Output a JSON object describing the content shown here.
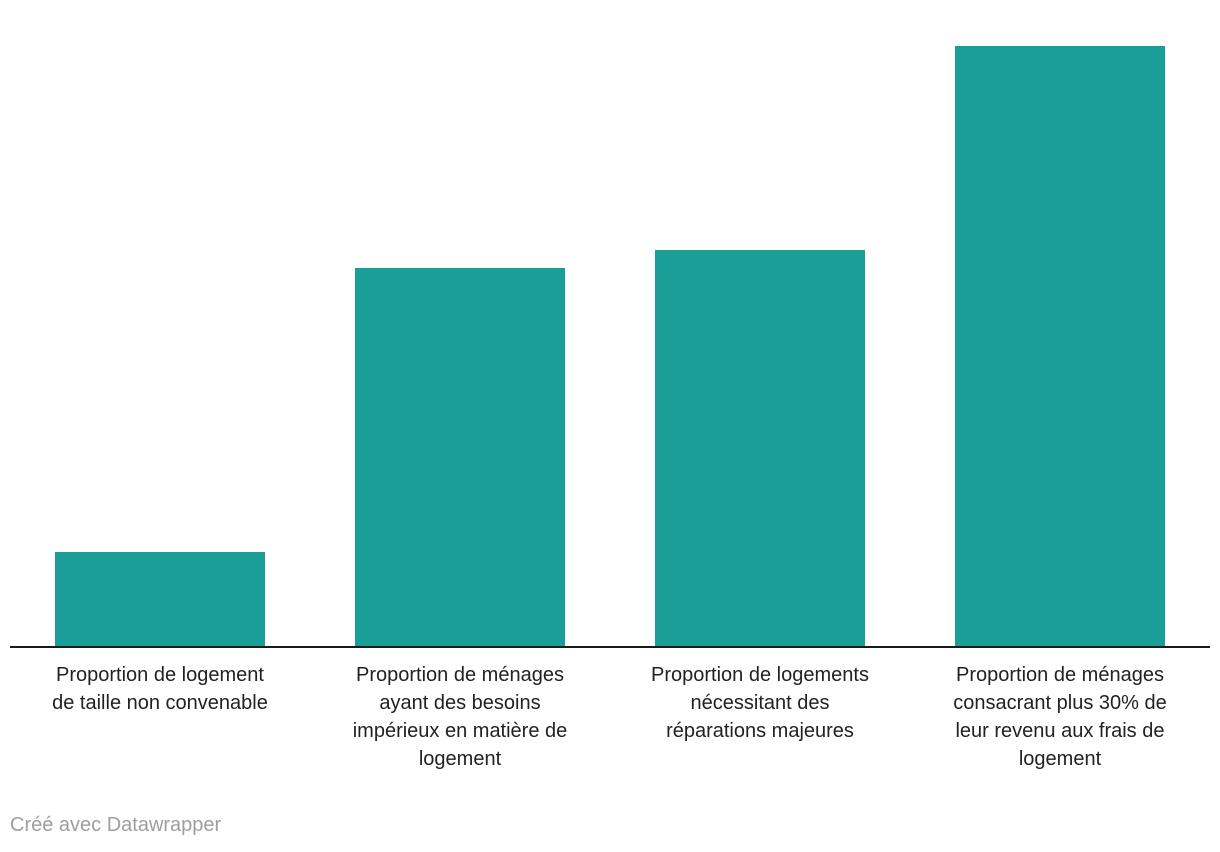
{
  "chart_data": {
    "type": "bar",
    "title": "",
    "xlabel": "",
    "ylabel": "",
    "categories": [
      "Proportion de logement de taille non convenable",
      "Proportion de ménages ayant des besoins impérieux en matière de logement",
      "Proportion de logements nécessitant des réparations majeures",
      "Proportion de ménages consacrant plus 30% de leur revenu aux frais de logement"
    ],
    "category_lines": [
      [
        "Proportion de logement",
        "de taille non convenable"
      ],
      [
        "Proportion de ménages",
        "ayant des besoins",
        "impérieux en matière de",
        "logement"
      ],
      [
        "Proportion de logements",
        "nécessitant des",
        "réparations majeures"
      ],
      [
        "Proportion de ménages",
        "consacrant plus 30% de",
        "leur revenu aux frais de",
        "logement"
      ]
    ],
    "values": [
      15.7,
      63,
      66,
      100
    ],
    "ylim": [
      0,
      100
    ],
    "value_axis_shown": false,
    "note": "No value axis, gridlines or data labels are shown; values are relative bar heights with the tallest bar = 100.",
    "grid": false,
    "legend_position": "none",
    "bar_color": "#1c9e98",
    "axis_color": "#1a1a1a",
    "label_color": "#222222"
  },
  "footer": {
    "credit": "Créé avec Datawrapper",
    "credit_color": "#9e9e9e"
  }
}
